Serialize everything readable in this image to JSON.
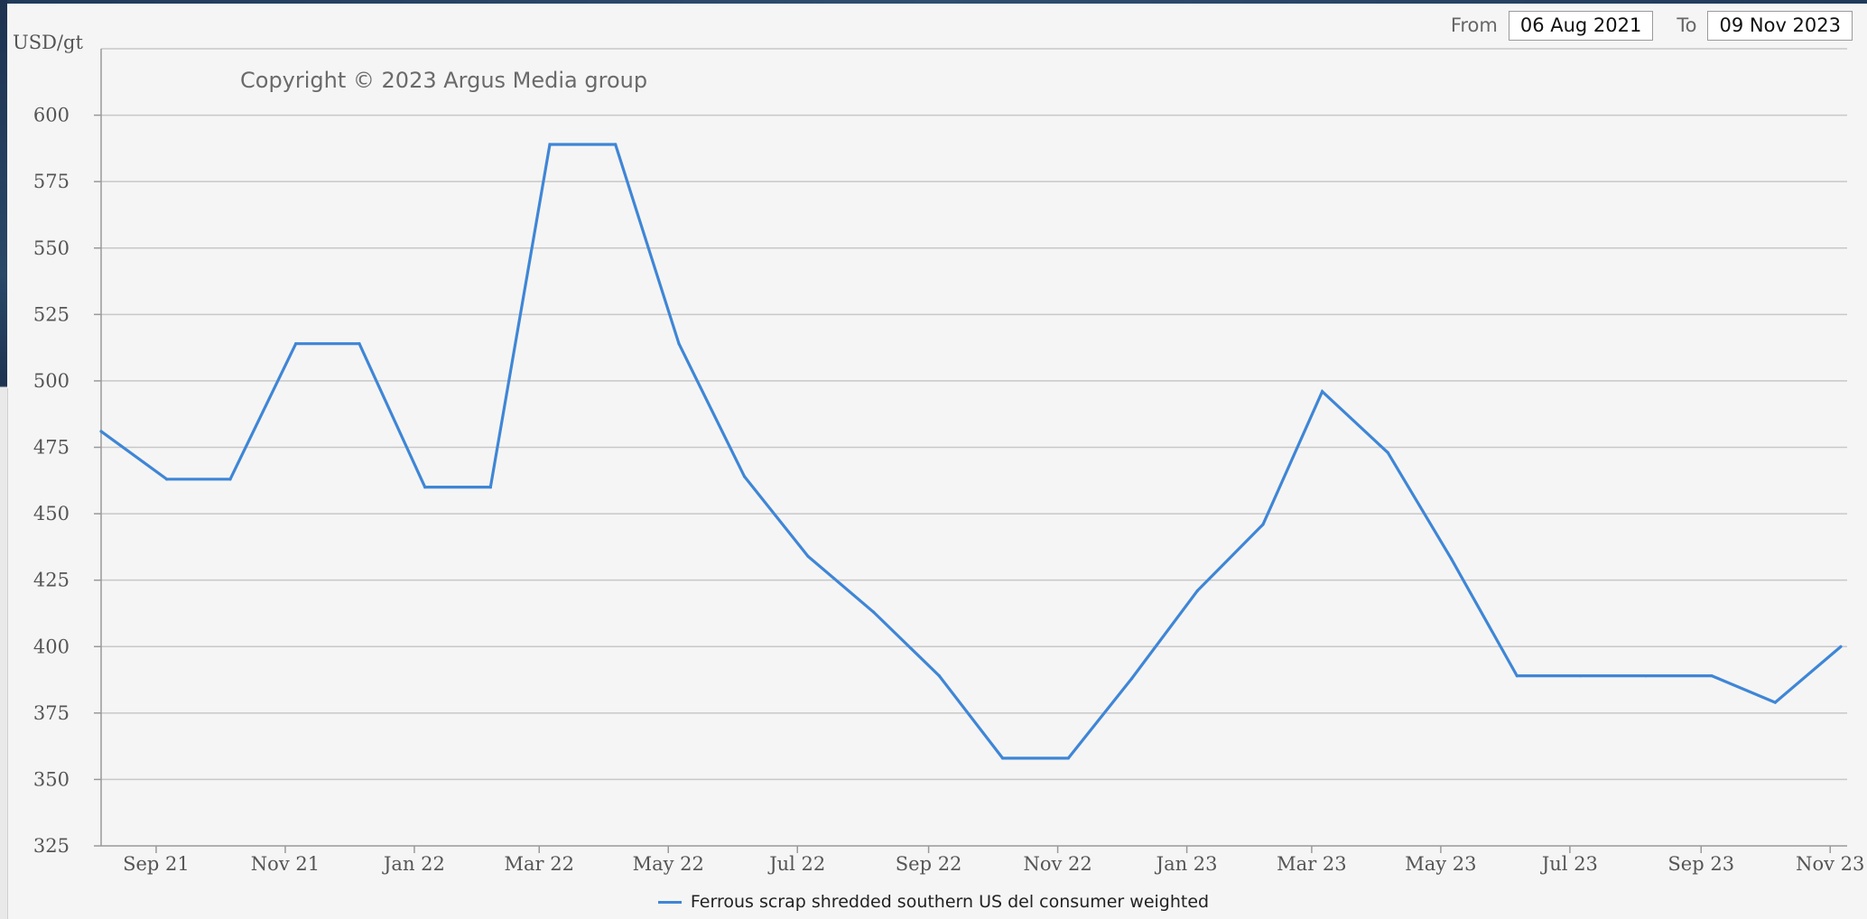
{
  "range": {
    "from_label": "From",
    "from_value": "06 Aug 2021",
    "to_label": "To",
    "to_value": "09 Nov 2023"
  },
  "chart_data": {
    "type": "line",
    "title": "",
    "ylabel": "USD/gt",
    "xlabel": "",
    "copyright": "Copyright © 2023 Argus Media group",
    "ylim": [
      325,
      625
    ],
    "yticks": [
      325,
      350,
      375,
      400,
      425,
      450,
      475,
      500,
      525,
      550,
      575,
      600
    ],
    "xlim": [
      "2021-08-06",
      "2023-11-09"
    ],
    "xticks": [
      {
        "label": "Sep 21",
        "date": "2021-09-01"
      },
      {
        "label": "Nov 21",
        "date": "2021-11-01"
      },
      {
        "label": "Jan 22",
        "date": "2022-01-01"
      },
      {
        "label": "Mar 22",
        "date": "2022-03-01"
      },
      {
        "label": "May 22",
        "date": "2022-05-01"
      },
      {
        "label": "Jul 22",
        "date": "2022-07-01"
      },
      {
        "label": "Sep 22",
        "date": "2022-09-01"
      },
      {
        "label": "Nov 22",
        "date": "2022-11-01"
      },
      {
        "label": "Jan 23",
        "date": "2023-01-01"
      },
      {
        "label": "Mar 23",
        "date": "2023-03-01"
      },
      {
        "label": "May 23",
        "date": "2023-05-01"
      },
      {
        "label": "Jul 23",
        "date": "2023-07-01"
      },
      {
        "label": "Sep 23",
        "date": "2023-09-01"
      },
      {
        "label": "Nov 23",
        "date": "2023-11-01"
      }
    ],
    "grid": true,
    "legend_position": "bottom",
    "series": [
      {
        "name": "Ferrous scrap shredded southern US del consumer weighted",
        "color": "#3f86d6",
        "points": [
          {
            "x": "2021-08-06",
            "y": 481
          },
          {
            "x": "2021-09-06",
            "y": 463
          },
          {
            "x": "2021-10-06",
            "y": 463
          },
          {
            "x": "2021-11-06",
            "y": 514
          },
          {
            "x": "2021-12-06",
            "y": 514
          },
          {
            "x": "2022-01-06",
            "y": 460
          },
          {
            "x": "2022-02-06",
            "y": 460
          },
          {
            "x": "2022-03-06",
            "y": 589
          },
          {
            "x": "2022-04-06",
            "y": 589
          },
          {
            "x": "2022-05-06",
            "y": 514
          },
          {
            "x": "2022-06-06",
            "y": 464
          },
          {
            "x": "2022-07-06",
            "y": 434
          },
          {
            "x": "2022-08-06",
            "y": 413
          },
          {
            "x": "2022-09-06",
            "y": 389
          },
          {
            "x": "2022-10-06",
            "y": 358
          },
          {
            "x": "2022-11-06",
            "y": 358
          },
          {
            "x": "2022-12-06",
            "y": 388
          },
          {
            "x": "2023-01-06",
            "y": 421
          },
          {
            "x": "2023-02-06",
            "y": 446
          },
          {
            "x": "2023-03-06",
            "y": 496
          },
          {
            "x": "2023-04-06",
            "y": 473
          },
          {
            "x": "2023-05-06",
            "y": 433
          },
          {
            "x": "2023-06-06",
            "y": 389
          },
          {
            "x": "2023-07-06",
            "y": 389
          },
          {
            "x": "2023-08-06",
            "y": 389
          },
          {
            "x": "2023-09-06",
            "y": 389
          },
          {
            "x": "2023-10-06",
            "y": 379
          },
          {
            "x": "2023-11-06",
            "y": 400
          }
        ]
      }
    ]
  }
}
